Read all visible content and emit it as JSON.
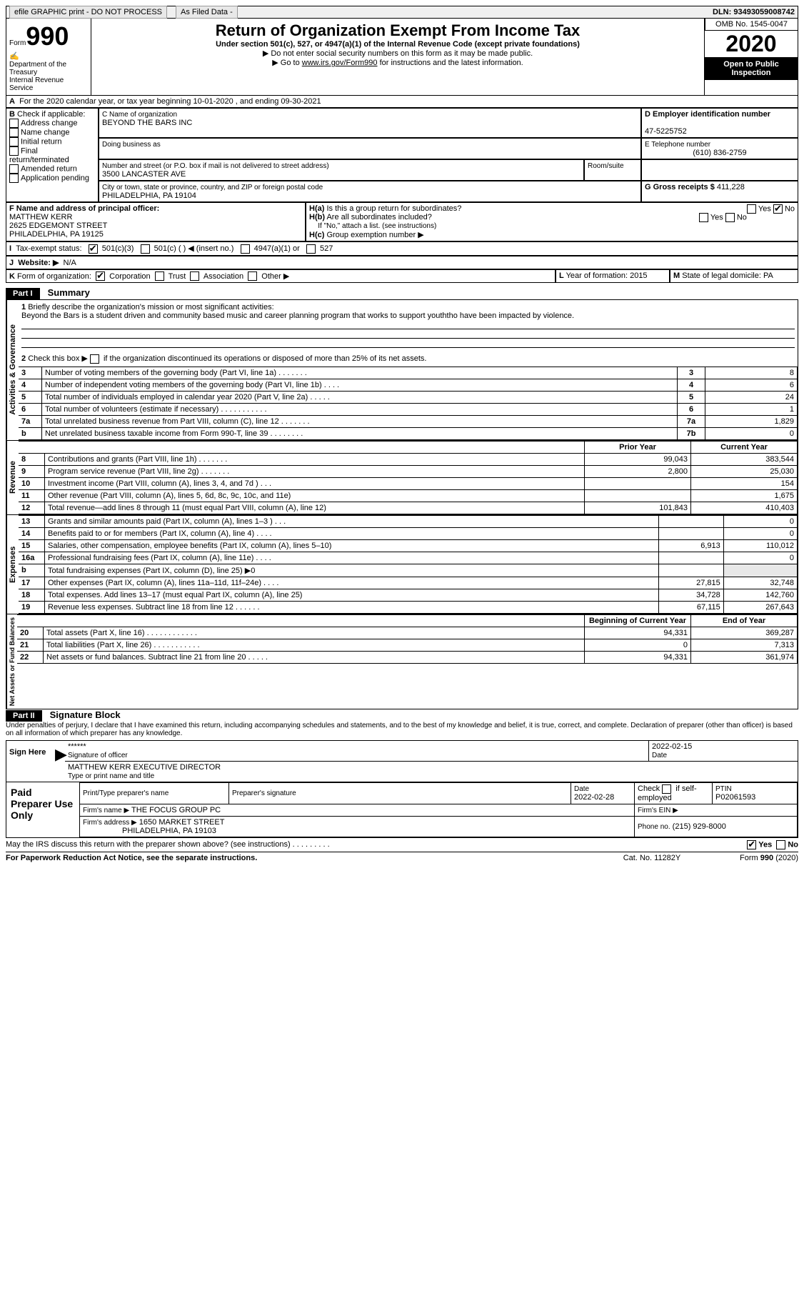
{
  "header": {
    "efile": "efile GRAPHIC print - DO NOT PROCESS",
    "asFiled": "As Filed Data -",
    "dln_label": "DLN:",
    "dln": "93493059008742",
    "form": "Form",
    "form_no": "990",
    "dept": "Department of the Treasury\nInternal Revenue Service",
    "title": "Return of Organization Exempt From Income Tax",
    "subtitle": "Under section 501(c), 527, or 4947(a)(1) of the Internal Revenue Code (except private foundations)",
    "note1": "▶ Do not enter social security numbers on this form as it may be made public.",
    "note2_pre": "▶ Go to ",
    "note2_link": "www.irs.gov/Form990",
    "note2_post": " for instructions and the latest information.",
    "omb": "OMB No. 1545-0047",
    "year": "2020",
    "open": "Open to Public Inspection"
  },
  "A_line": "For the 2020 calendar year, or tax year beginning 10-01-2020   , and ending 09-30-2021",
  "B": {
    "title": "Check if applicable:",
    "items": [
      "Address change",
      "Name change",
      "Initial return",
      "Final return/terminated",
      "Amended return",
      "Application pending"
    ]
  },
  "C": {
    "name_label": "C Name of organization",
    "name": "BEYOND THE BARS INC",
    "dba_label": "Doing business as",
    "street_label": "Number and street (or P.O. box if mail is not delivered to street address)",
    "room_label": "Room/suite",
    "street": "3500 LANCASTER AVE",
    "city_label": "City or town, state or province, country, and ZIP or foreign postal code",
    "city": "PHILADELPHIA, PA  19104"
  },
  "D": {
    "label": "D Employer identification number",
    "value": "47-5225752"
  },
  "E": {
    "label": "E Telephone number",
    "value": "(610) 836-2759"
  },
  "G": {
    "label": "G Gross receipts $",
    "value": "411,228"
  },
  "F": {
    "label": "F  Name and address of principal officer:",
    "name": "MATTHEW KERR",
    "addr1": "2625 EDGEMONT STREET",
    "addr2": "PHILADELPHIA, PA  19125"
  },
  "H": {
    "a": "Is this a group return for subordinates?",
    "b": "Are all subordinates included?",
    "note": "If \"No,\" attach a list. (see instructions)",
    "c": "Group exemption number ▶",
    "yes": "Yes",
    "no": "No"
  },
  "I": {
    "label": "Tax-exempt status:",
    "opts": [
      "501(c)(3)",
      "501(c) (   ) ◀ (insert no.)",
      "4947(a)(1) or",
      "527"
    ]
  },
  "J": {
    "label": "Website: ▶",
    "value": "N/A"
  },
  "K": {
    "label": "Form of organization:",
    "opts": [
      "Corporation",
      "Trust",
      "Association",
      "Other ▶"
    ]
  },
  "L": {
    "label": "Year of formation:",
    "value": "2015"
  },
  "M": {
    "label": "State of legal domicile:",
    "value": "PA"
  },
  "part1": {
    "tab": "Part I",
    "title": "Summary"
  },
  "summary": {
    "line1_label": "Briefly describe the organization's mission or most significant activities:",
    "line1_text": "Beyond the Bars is a student driven and community based music and career planning program that works to support youththo have been impacted by violence.",
    "line2": "Check this box ▶        if the organization discontinued its operations or disposed of more than 25% of its net assets."
  },
  "sections": {
    "gov": "Activities & Governance",
    "rev": "Revenue",
    "exp": "Expenses",
    "net": "Net Assets or Fund Balances"
  },
  "cols": {
    "prior": "Prior Year",
    "current": "Current Year",
    "boy": "Beginning of Current Year",
    "eoy": "End of Year"
  },
  "gov_rows": [
    {
      "n": "3",
      "t": "Number of voting members of the governing body (Part VI, line 1a)   .    .    .    .    .    .    .",
      "box": "3",
      "v": "8"
    },
    {
      "n": "4",
      "t": "Number of independent voting members of the governing body (Part VI, line 1b)   .    .    .    .",
      "box": "4",
      "v": "6"
    },
    {
      "n": "5",
      "t": "Total number of individuals employed in calendar year 2020 (Part V, line 2a)   .    .    .    .    .",
      "box": "5",
      "v": "24"
    },
    {
      "n": "6",
      "t": "Total number of volunteers (estimate if necessary)   .    .    .    .    .    .    .    .    .    .    .",
      "box": "6",
      "v": "1"
    },
    {
      "n": "7a",
      "t": "Total unrelated business revenue from Part VIII, column (C), line 12   .    .    .    .    .    .    .",
      "box": "7a",
      "v": "1,829"
    },
    {
      "n": "b",
      "t": "Net unrelated business taxable income from Form 990-T, line 39   .    .    .    .    .    .    .    .",
      "box": "7b",
      "v": "0"
    }
  ],
  "rev_rows": [
    {
      "n": "8",
      "t": "Contributions and grants (Part VIII, line 1h)   .    .    .    .    .    .    .",
      "p": "99,043",
      "c": "383,544"
    },
    {
      "n": "9",
      "t": "Program service revenue (Part VIII, line 2g)   .    .    .    .    .    .    .",
      "p": "2,800",
      "c": "25,030"
    },
    {
      "n": "10",
      "t": "Investment income (Part VIII, column (A), lines 3, 4, and 7d )   .    .    .",
      "p": "",
      "c": "154"
    },
    {
      "n": "11",
      "t": "Other revenue (Part VIII, column (A), lines 5, 6d, 8c, 9c, 10c, and 11e)",
      "p": "",
      "c": "1,675"
    },
    {
      "n": "12",
      "t": "Total revenue—add lines 8 through 11 (must equal Part VIII, column (A), line 12)",
      "p": "101,843",
      "c": "410,403"
    }
  ],
  "exp_rows": [
    {
      "n": "13",
      "t": "Grants and similar amounts paid (Part IX, column (A), lines 1–3 )   .    .    .",
      "p": "",
      "c": "0"
    },
    {
      "n": "14",
      "t": "Benefits paid to or for members (Part IX, column (A), line 4)   .    .    .    .",
      "p": "",
      "c": "0"
    },
    {
      "n": "15",
      "t": "Salaries, other compensation, employee benefits (Part IX, column (A), lines 5–10)",
      "p": "6,913",
      "c": "110,012"
    },
    {
      "n": "16a",
      "t": "Professional fundraising fees (Part IX, column (A), line 11e)   .    .    .    .",
      "p": "",
      "c": "0"
    },
    {
      "n": "b",
      "t": "Total fundraising expenses (Part IX, column (D), line 25) ▶0",
      "p": "",
      "c": ""
    },
    {
      "n": "17",
      "t": "Other expenses (Part IX, column (A), lines 11a–11d, 11f–24e)   .    .    .    .",
      "p": "27,815",
      "c": "32,748"
    },
    {
      "n": "18",
      "t": "Total expenses. Add lines 13–17 (must equal Part IX, column (A), line 25)",
      "p": "34,728",
      "c": "142,760"
    },
    {
      "n": "19",
      "t": "Revenue less expenses. Subtract line 18 from line 12   .    .    .    .    .    .",
      "p": "67,115",
      "c": "267,643"
    }
  ],
  "net_rows": [
    {
      "n": "20",
      "t": "Total assets (Part X, line 16)   .    .    .    .    .    .    .    .    .    .    .    .",
      "p": "94,331",
      "c": "369,287"
    },
    {
      "n": "21",
      "t": "Total liabilities (Part X, line 26)   .    .    .    .    .    .    .    .    .    .    .",
      "p": "0",
      "c": "7,313"
    },
    {
      "n": "22",
      "t": "Net assets or fund balances. Subtract line 21 from line 20   .    .    .    .    .",
      "p": "94,331",
      "c": "361,974"
    }
  ],
  "part2": {
    "tab": "Part II",
    "title": "Signature Block"
  },
  "sig": {
    "penalty": "Under penalties of perjury, I declare that I have examined this return, including accompanying schedules and statements, and to the best of my knowledge and belief, it is true, correct, and complete. Declaration of preparer (other than officer) is based on all information of which preparer has any knowledge.",
    "sign_here": "Sign Here",
    "stars": "******",
    "sig_of_officer": "Signature of officer",
    "date": "Date",
    "date_val": "2022-02-15",
    "name": "MATTHEW KERR  EXECUTIVE DIRECTOR",
    "name_label": "Type or print name and title"
  },
  "paid": {
    "title": "Paid Preparer Use Only",
    "h1": "Print/Type preparer's name",
    "h2": "Preparer's signature",
    "h3": "Date",
    "h3v": "2022-02-28",
    "h4": "Check        if self-employed",
    "h5": "PTIN",
    "h5v": "P02061593",
    "firm_name_l": "Firm's name      ▶",
    "firm_name": "THE FOCUS GROUP PC",
    "firm_ein_l": "Firm's EIN ▶",
    "firm_addr_l": "Firm's address ▶",
    "firm_addr": "1650 MARKET STREET",
    "firm_city": "PHILADELPHIA, PA  19103",
    "phone_l": "Phone no.",
    "phone": "(215) 929-8000"
  },
  "footer": {
    "q": "May the IRS discuss this return with the preparer shown above? (see instructions)   .    .    .    .    .    .    .    .    .",
    "yes": "Yes",
    "no": "No",
    "paperwork": "For Paperwork Reduction Act Notice, see the separate instructions.",
    "cat": "Cat. No. 11282Y",
    "form": "Form 990 (2020)"
  }
}
